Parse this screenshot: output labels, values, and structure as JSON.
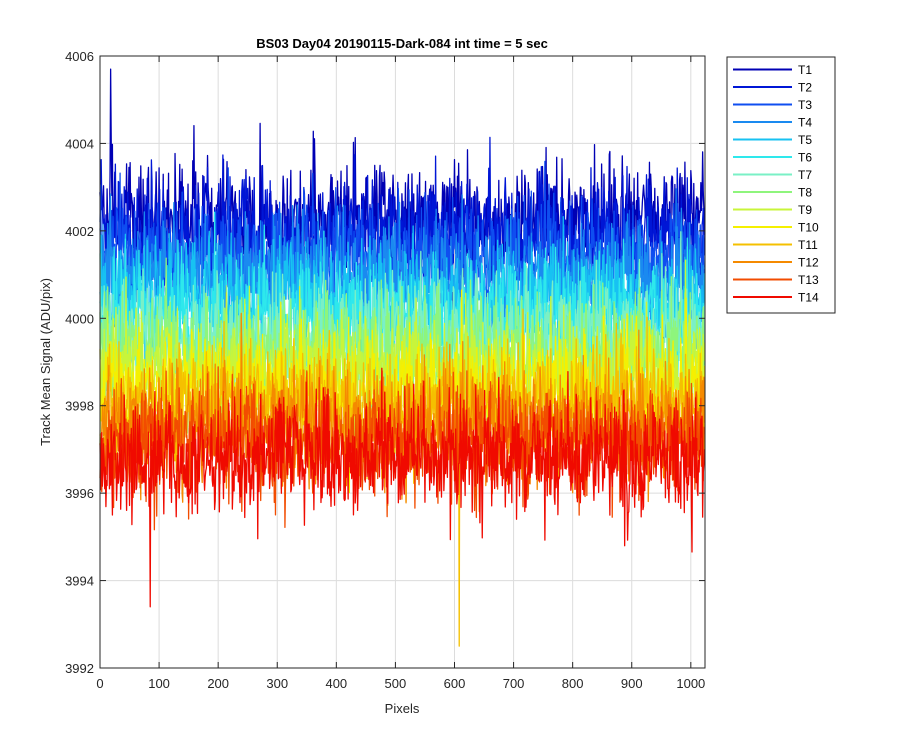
{
  "chart_data": {
    "type": "line",
    "title": "BS03 Day04 20190115-Dark-084 int time = 5 sec",
    "xlabel": "Pixels",
    "ylabel": "Track Mean Signal (ADU/pix)",
    "xlim": [
      0,
      1024
    ],
    "ylim": [
      3992,
      4006
    ],
    "xticks": [
      0,
      100,
      200,
      300,
      400,
      500,
      600,
      700,
      800,
      900,
      1000
    ],
    "yticks": [
      3992,
      3994,
      3996,
      3998,
      4000,
      4002,
      4004,
      4006
    ],
    "grid": true,
    "legend_position": "outside-top-right",
    "n_points": 1024,
    "series": [
      {
        "name": "T1",
        "color": "#0000b4",
        "mean": 4002.3,
        "noise_sd": 0.65
      },
      {
        "name": "T2",
        "color": "#0016d6",
        "mean": 4001.9,
        "noise_sd": 0.65
      },
      {
        "name": "T3",
        "color": "#0f4ef0",
        "mean": 4001.4,
        "noise_sd": 0.65
      },
      {
        "name": "T4",
        "color": "#1a8af0",
        "mean": 4000.9,
        "noise_sd": 0.65
      },
      {
        "name": "T5",
        "color": "#17c2f2",
        "mean": 4000.4,
        "noise_sd": 0.65
      },
      {
        "name": "T6",
        "color": "#2ee8ec",
        "mean": 4000.0,
        "noise_sd": 0.65
      },
      {
        "name": "T7",
        "color": "#7af0c6",
        "mean": 3999.6,
        "noise_sd": 0.65
      },
      {
        "name": "T8",
        "color": "#8ef57c",
        "mean": 3999.2,
        "noise_sd": 0.65
      },
      {
        "name": "T9",
        "color": "#c8f53a",
        "mean": 3998.8,
        "noise_sd": 0.65
      },
      {
        "name": "T10",
        "color": "#f5f000",
        "mean": 3998.4,
        "noise_sd": 0.65
      },
      {
        "name": "T11",
        "color": "#f5c000",
        "mean": 3998.0,
        "noise_sd": 0.65
      },
      {
        "name": "T12",
        "color": "#f58a00",
        "mean": 3997.6,
        "noise_sd": 0.65
      },
      {
        "name": "T13",
        "color": "#f24c00",
        "mean": 3997.2,
        "noise_sd": 0.65
      },
      {
        "name": "T14",
        "color": "#f00a00",
        "mean": 3996.8,
        "noise_sd": 0.65
      }
    ],
    "notable_values": [
      {
        "series": "T1",
        "x": 18,
        "y": 4005.7
      },
      {
        "series": "T11",
        "x": 608,
        "y": 3992.5
      },
      {
        "series": "T14",
        "x": 85,
        "y": 3993.4
      }
    ]
  }
}
